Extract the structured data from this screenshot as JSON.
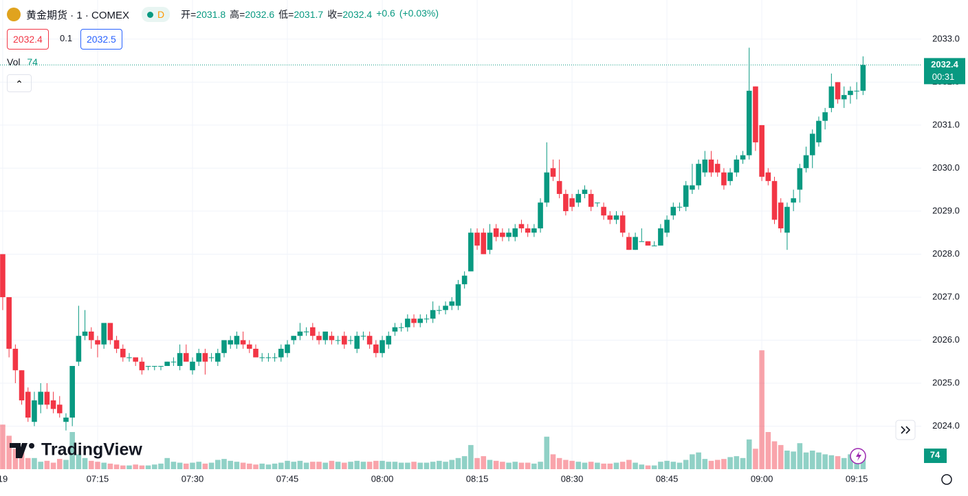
{
  "chart_data": {
    "type": "candlestick",
    "symbol": "黄金期货 · 1 · COMEX",
    "interval": "D",
    "stats": [
      {
        "label": "开=",
        "value": 2031.8
      },
      {
        "label": "高=",
        "value": 2032.6
      },
      {
        "label": "低=",
        "value": 2031.7
      },
      {
        "label": "收=",
        "value": 2032.4
      }
    ],
    "change": {
      "value": 0.6,
      "label": "+0.6"
    },
    "change_pct": {
      "value": 0.03,
      "label": "(+0.03%)"
    },
    "sell": 2032.4,
    "spread": 0.1,
    "buy": 2032.5,
    "volume_label": "Vol",
    "countdown": "00:31",
    "last_price": 2032.4,
    "logo": "TradingView",
    "up_color": "#089981",
    "down_color": "#f23645",
    "xlim": [
      -0.43,
      145.2
    ],
    "xticks": [
      {
        "value": 0,
        "label": "19"
      },
      {
        "value": 15,
        "label": "07:15"
      },
      {
        "value": 30,
        "label": "07:30"
      },
      {
        "value": 45,
        "label": "07:45"
      },
      {
        "value": 60,
        "label": "08:00"
      },
      {
        "value": 75,
        "label": "08:15"
      },
      {
        "value": 90,
        "label": "08:30"
      },
      {
        "value": 105,
        "label": "08:45"
      },
      {
        "value": 120,
        "label": "09:00"
      },
      {
        "value": 135,
        "label": "09:15"
      }
    ],
    "ylim": [
      2023.0,
      2033.91
    ],
    "yticks": [
      {
        "value": 2024,
        "label": "2024.0"
      },
      {
        "value": 2025,
        "label": "2025.0"
      },
      {
        "value": 2026,
        "label": "2026.0"
      },
      {
        "value": 2027,
        "label": "2027.0"
      },
      {
        "value": 2028,
        "label": "2028.0"
      },
      {
        "value": 2029,
        "label": "2029.0"
      },
      {
        "value": 2030,
        "label": "2030.0"
      },
      {
        "value": 2031,
        "label": "2031.0"
      },
      {
        "value": 2032,
        "label": "2032.0"
      },
      {
        "value": 2033,
        "label": "2033.0"
      }
    ],
    "volume_lim": [
      0,
      2526
    ],
    "ohlc": [
      [
        2028.0,
        2028.0,
        2026.7,
        2027.0
      ],
      [
        2027.0,
        2027.0,
        2025.6,
        2025.8
      ],
      [
        2025.8,
        2025.9,
        2025.0,
        2025.3
      ],
      [
        2025.3,
        2025.3,
        2024.5,
        2024.6
      ],
      [
        2024.8,
        2024.9,
        2024.1,
        2024.2
      ],
      [
        2024.1,
        2024.8,
        2024.0,
        2024.6
      ],
      [
        2024.5,
        2025.0,
        2024.3,
        2024.8
      ],
      [
        2024.8,
        2025.0,
        2024.4,
        2024.5
      ],
      [
        2024.6,
        2024.8,
        2024.3,
        2024.4
      ],
      [
        2024.5,
        2024.7,
        2024.2,
        2024.3
      ],
      [
        2024.1,
        2024.3,
        2023.9,
        2024.2
      ],
      [
        2024.2,
        2025.4,
        2024.0,
        2025.4
      ],
      [
        2025.5,
        2026.8,
        2025.4,
        2026.1
      ],
      [
        2026.1,
        2026.7,
        2026.0,
        2026.2
      ],
      [
        2026.2,
        2026.3,
        2025.8,
        2026.0
      ],
      [
        2026.0,
        2026.1,
        2025.6,
        2025.9
      ],
      [
        2025.9,
        2026.4,
        2025.8,
        2026.4
      ],
      [
        2026.4,
        2026.4,
        2025.9,
        2026.0
      ],
      [
        2026.0,
        2026.1,
        2025.7,
        2025.8
      ],
      [
        2025.8,
        2025.9,
        2025.5,
        2025.6
      ],
      [
        2025.6,
        2025.7,
        2025.5,
        2025.6
      ],
      [
        2025.6,
        2025.6,
        2025.4,
        2025.5
      ],
      [
        2025.5,
        2025.6,
        2025.2,
        2025.3
      ],
      [
        2025.4,
        2025.4,
        2025.3,
        2025.4
      ],
      [
        2025.4,
        2025.4,
        2025.3,
        2025.4
      ],
      [
        2025.4,
        2025.4,
        2025.3,
        2025.4
      ],
      [
        2025.4,
        2025.5,
        2025.4,
        2025.5
      ],
      [
        2025.5,
        2025.6,
        2025.4,
        2025.5
      ],
      [
        2025.4,
        2025.9,
        2025.3,
        2025.7
      ],
      [
        2025.7,
        2025.9,
        2025.5,
        2025.5
      ],
      [
        2025.3,
        2025.6,
        2025.2,
        2025.5
      ],
      [
        2025.5,
        2025.8,
        2025.4,
        2025.7
      ],
      [
        2025.7,
        2025.8,
        2025.2,
        2025.5
      ],
      [
        2025.6,
        2025.7,
        2025.5,
        2025.6
      ],
      [
        2025.5,
        2025.8,
        2025.4,
        2025.7
      ],
      [
        2025.7,
        2026.0,
        2025.6,
        2026.0
      ],
      [
        2025.9,
        2026.1,
        2025.8,
        2026.0
      ],
      [
        2025.9,
        2026.2,
        2025.8,
        2026.1
      ],
      [
        2026.0,
        2026.2,
        2025.8,
        2025.9
      ],
      [
        2025.9,
        2026.0,
        2025.7,
        2025.8
      ],
      [
        2025.8,
        2025.9,
        2025.6,
        2025.6
      ],
      [
        2025.6,
        2025.7,
        2025.5,
        2025.6
      ],
      [
        2025.6,
        2025.7,
        2025.5,
        2025.6
      ],
      [
        2025.6,
        2025.7,
        2025.5,
        2025.6
      ],
      [
        2025.6,
        2025.9,
        2025.5,
        2025.8
      ],
      [
        2025.7,
        2026.0,
        2025.6,
        2025.9
      ],
      [
        2026.0,
        2026.1,
        2025.9,
        2026.1
      ],
      [
        2026.1,
        2026.4,
        2026.0,
        2026.2
      ],
      [
        2026.2,
        2026.3,
        2026.1,
        2026.2
      ],
      [
        2026.3,
        2026.4,
        2026.0,
        2026.1
      ],
      [
        2026.1,
        2026.2,
        2025.9,
        2026.0
      ],
      [
        2026.0,
        2026.2,
        2025.9,
        2026.2
      ],
      [
        2026.1,
        2026.2,
        2025.9,
        2026.0
      ],
      [
        2026.0,
        2026.1,
        2025.9,
        2026.0
      ],
      [
        2026.1,
        2026.2,
        2025.8,
        2025.9
      ],
      [
        2026.0,
        2026.1,
        2025.9,
        2026.0
      ],
      [
        2025.8,
        2026.2,
        2025.7,
        2026.1
      ],
      [
        2026.1,
        2026.2,
        2026.0,
        2026.1
      ],
      [
        2026.1,
        2026.2,
        2025.8,
        2025.9
      ],
      [
        2025.9,
        2026.0,
        2025.6,
        2025.7
      ],
      [
        2025.7,
        2026.1,
        2025.6,
        2026.0
      ],
      [
        2025.9,
        2026.2,
        2025.8,
        2026.1
      ],
      [
        2026.2,
        2026.4,
        2026.1,
        2026.3
      ],
      [
        2026.3,
        2026.4,
        2026.2,
        2026.3
      ],
      [
        2026.3,
        2026.6,
        2026.2,
        2026.5
      ],
      [
        2026.5,
        2026.6,
        2026.3,
        2026.4
      ],
      [
        2026.4,
        2026.6,
        2026.3,
        2026.5
      ],
      [
        2026.5,
        2026.6,
        2026.4,
        2026.5
      ],
      [
        2026.5,
        2026.9,
        2026.4,
        2026.7
      ],
      [
        2026.7,
        2026.8,
        2026.6,
        2026.7
      ],
      [
        2026.7,
        2026.9,
        2026.6,
        2026.8
      ],
      [
        2026.8,
        2027.0,
        2026.7,
        2026.9
      ],
      [
        2026.8,
        2027.4,
        2026.7,
        2027.3
      ],
      [
        2027.3,
        2027.6,
        2027.2,
        2027.5
      ],
      [
        2027.6,
        2028.6,
        2027.6,
        2028.5
      ],
      [
        2028.5,
        2028.6,
        2028.1,
        2028.2
      ],
      [
        2028.5,
        2028.6,
        2028.0,
        2028.0
      ],
      [
        2028.1,
        2028.7,
        2028.0,
        2028.5
      ],
      [
        2028.6,
        2028.7,
        2028.3,
        2028.4
      ],
      [
        2028.5,
        2028.6,
        2028.3,
        2028.4
      ],
      [
        2028.4,
        2028.6,
        2028.3,
        2028.5
      ],
      [
        2028.4,
        2028.7,
        2028.3,
        2028.6
      ],
      [
        2028.7,
        2028.8,
        2028.5,
        2028.6
      ],
      [
        2028.6,
        2028.7,
        2028.4,
        2028.5
      ],
      [
        2028.5,
        2028.7,
        2028.4,
        2028.6
      ],
      [
        2028.6,
        2029.3,
        2028.5,
        2029.2
      ],
      [
        2029.2,
        2030.6,
        2029.1,
        2029.9
      ],
      [
        2030.0,
        2030.2,
        2029.7,
        2029.8
      ],
      [
        2029.7,
        2030.2,
        2029.3,
        2029.4
      ],
      [
        2029.4,
        2029.5,
        2028.9,
        2029.0
      ],
      [
        2029.3,
        2029.4,
        2029.0,
        2029.1
      ],
      [
        2029.2,
        2029.5,
        2029.1,
        2029.4
      ],
      [
        2029.4,
        2029.6,
        2029.3,
        2029.5
      ],
      [
        2029.4,
        2029.5,
        2029.0,
        2029.1
      ],
      [
        2029.2,
        2029.2,
        2029.1,
        2029.2
      ],
      [
        2029.1,
        2029.2,
        2028.8,
        2028.9
      ],
      [
        2028.9,
        2029.0,
        2028.7,
        2028.8
      ],
      [
        2028.8,
        2029.0,
        2028.7,
        2028.9
      ],
      [
        2028.9,
        2029.0,
        2028.4,
        2028.5
      ],
      [
        2028.4,
        2028.5,
        2028.1,
        2028.1
      ],
      [
        2028.1,
        2028.5,
        2028.1,
        2028.4
      ],
      [
        2028.3,
        2028.6,
        2028.3,
        2028.3
      ],
      [
        2028.3,
        2028.3,
        2028.2,
        2028.2
      ],
      [
        2028.2,
        2028.3,
        2028.2,
        2028.2
      ],
      [
        2028.2,
        2028.7,
        2028.2,
        2028.6
      ],
      [
        2028.5,
        2028.9,
        2028.4,
        2028.8
      ],
      [
        2028.9,
        2029.2,
        2028.8,
        2029.1
      ],
      [
        2029.1,
        2029.2,
        2029.0,
        2029.1
      ],
      [
        2029.1,
        2029.7,
        2029.0,
        2029.6
      ],
      [
        2029.5,
        2030.1,
        2029.4,
        2029.6
      ],
      [
        2029.6,
        2030.2,
        2029.5,
        2030.1
      ],
      [
        2029.9,
        2030.4,
        2029.8,
        2030.2
      ],
      [
        2030.2,
        2030.4,
        2029.8,
        2029.9
      ],
      [
        2030.1,
        2030.2,
        2029.8,
        2029.9
      ],
      [
        2029.9,
        2030.0,
        2029.5,
        2029.6
      ],
      [
        2029.7,
        2030.0,
        2029.6,
        2029.9
      ],
      [
        2029.9,
        2030.3,
        2029.8,
        2030.2
      ],
      [
        2030.2,
        2030.4,
        2030.1,
        2030.3
      ],
      [
        2030.3,
        2032.8,
        2030.2,
        2031.8
      ],
      [
        2031.9,
        2031.9,
        2030.4,
        2030.6
      ],
      [
        2031.0,
        2031.0,
        2029.7,
        2029.8
      ],
      [
        2029.9,
        2030.0,
        2029.6,
        2029.7
      ],
      [
        2029.7,
        2029.8,
        2028.7,
        2028.8
      ],
      [
        2029.2,
        2029.3,
        2028.5,
        2028.6
      ],
      [
        2028.5,
        2029.2,
        2028.1,
        2029.1
      ],
      [
        2029.2,
        2029.5,
        2029.0,
        2029.3
      ],
      [
        2029.5,
        2030.1,
        2029.2,
        2030.0
      ],
      [
        2030.0,
        2030.5,
        2029.9,
        2030.3
      ],
      [
        2030.3,
        2030.9,
        2030.0,
        2030.8
      ],
      [
        2030.6,
        2031.2,
        2030.5,
        2031.1
      ],
      [
        2031.1,
        2031.4,
        2030.9,
        2031.3
      ],
      [
        2031.4,
        2032.2,
        2031.3,
        2031.9
      ],
      [
        2032.0,
        2032.0,
        2031.5,
        2031.6
      ],
      [
        2031.6,
        2031.9,
        2031.4,
        2031.7
      ],
      [
        2031.7,
        2031.9,
        2031.5,
        2031.8
      ],
      [
        2031.8,
        2032.0,
        2031.6,
        2031.8
      ],
      [
        2031.8,
        2032.6,
        2031.7,
        2032.4
      ]
    ],
    "volume": [
      240,
      180,
      110,
      90,
      60,
      60,
      40,
      45,
      35,
      55,
      50,
      200,
      80,
      60,
      45,
      40,
      35,
      30,
      25,
      20,
      20,
      25,
      20,
      20,
      25,
      30,
      60,
      40,
      35,
      30,
      35,
      40,
      30,
      35,
      50,
      55,
      45,
      40,
      35,
      30,
      25,
      30,
      25,
      30,
      35,
      45,
      40,
      45,
      35,
      40,
      40,
      35,
      45,
      40,
      35,
      40,
      45,
      40,
      40,
      45,
      45,
      40,
      40,
      35,
      35,
      40,
      35,
      35,
      40,
      45,
      40,
      50,
      60,
      70,
      130,
      60,
      70,
      50,
      45,
      40,
      35,
      40,
      35,
      35,
      30,
      40,
      175,
      80,
      60,
      50,
      45,
      40,
      35,
      40,
      35,
      30,
      30,
      35,
      40,
      50,
      35,
      25,
      20,
      20,
      40,
      45,
      40,
      35,
      50,
      80,
      90,
      55,
      45,
      50,
      55,
      65,
      70,
      60,
      160,
      110,
      640,
      200,
      150,
      130,
      100,
      95,
      140,
      90,
      100,
      90,
      80,
      75,
      70,
      60,
      80,
      60,
      74
    ]
  }
}
